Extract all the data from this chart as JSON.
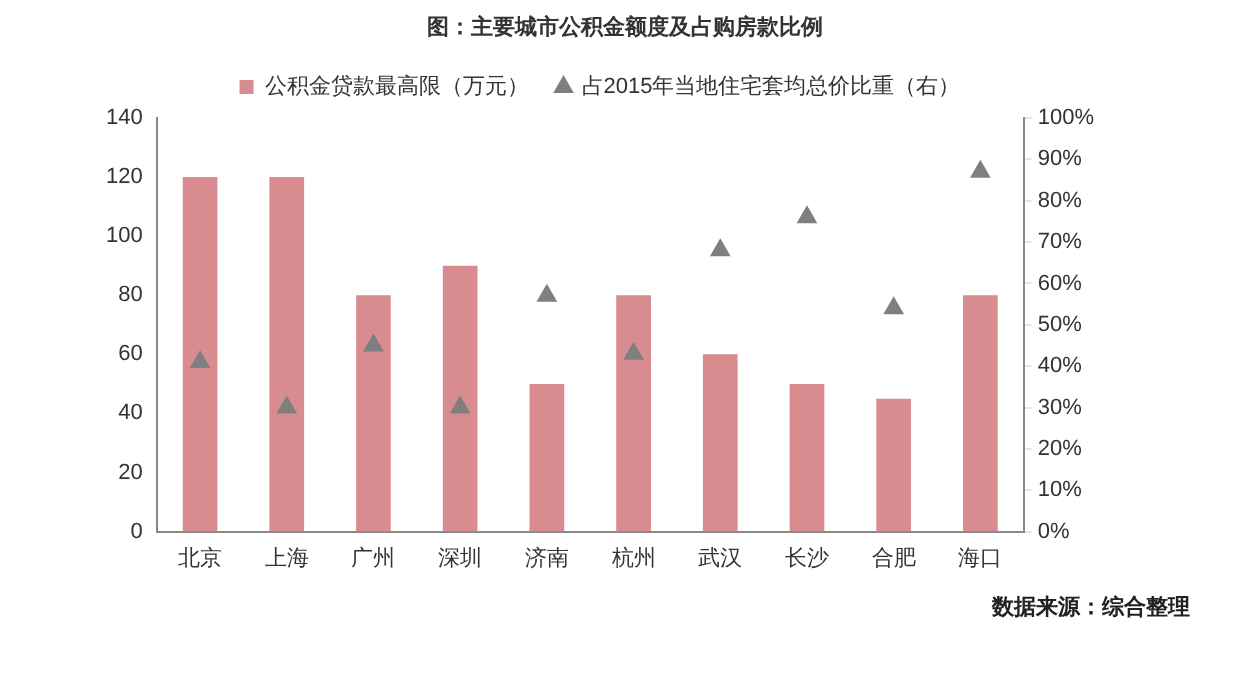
{
  "chart_data": {
    "type": "bar",
    "title": "图：主要城市公积金额度及占购房款比例",
    "categories": [
      "北京",
      "上海",
      "广州",
      "深圳",
      "济南",
      "杭州",
      "武汉",
      "长沙",
      "合肥",
      "海口"
    ],
    "series": [
      {
        "name": "公积金贷款最高限（万元）",
        "color": "#d98c90",
        "values": [
          120,
          120,
          80,
          90,
          50,
          80,
          60,
          50,
          45,
          80
        ]
      },
      {
        "name": "占2015年当地住宅套均总价比重（右）",
        "type": "scatter",
        "axis": "y2",
        "color": "#7f7f7f",
        "x": [
          "北京",
          "上海",
          "广州",
          "深圳",
          "济南",
          "杭州",
          "武汉",
          "长沙",
          "合肥",
          "海口"
        ],
        "values": [
          41,
          30,
          45,
          30,
          57,
          43,
          68,
          76,
          54,
          87
        ]
      }
    ],
    "ylim": [
      0,
      140
    ],
    "yticks": [
      0,
      20,
      40,
      60,
      80,
      100,
      120,
      140
    ],
    "y2lim": [
      0,
      100
    ],
    "y2ticks": [
      {
        "value": 0,
        "label": "0%"
      },
      {
        "value": 10,
        "label": "10%"
      },
      {
        "value": 20,
        "label": "20%"
      },
      {
        "value": 30,
        "label": "30%"
      },
      {
        "value": 40,
        "label": "40%"
      },
      {
        "value": 50,
        "label": "50%"
      },
      {
        "value": 60,
        "label": "60%"
      },
      {
        "value": 70,
        "label": "70%"
      },
      {
        "value": 80,
        "label": "80%"
      },
      {
        "value": 90,
        "label": "90%"
      },
      {
        "value": 100,
        "label": "100%"
      }
    ],
    "grid": false,
    "legend": "top",
    "marker": "triangle",
    "annotations": [
      "数据来源：综合整理"
    ]
  }
}
